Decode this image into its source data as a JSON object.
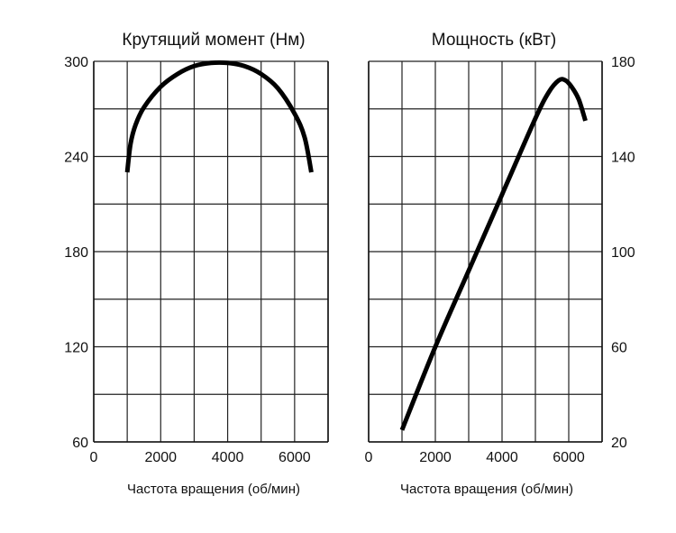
{
  "chart_data": [
    {
      "type": "line",
      "title": "Крутящий момент (Нм)",
      "xlabel": "Частота вращения (об/мин)",
      "ylabel": "",
      "xlim": [
        0,
        7000
      ],
      "ylim": [
        60,
        300
      ],
      "x_ticks": [
        "0",
        "2000",
        "4000",
        "6000"
      ],
      "y_ticks": [
        "60",
        "120",
        "180",
        "240",
        "300"
      ],
      "grid": true,
      "series": [
        {
          "x": [
            1000,
            1100,
            1250,
            1500,
            2000,
            2500,
            3000,
            3500,
            4000,
            4500,
            5000,
            5500,
            6000,
            6300,
            6500
          ],
          "y": [
            230,
            248,
            260,
            271,
            284,
            292,
            297,
            299,
            299,
            297,
            292,
            283,
            267,
            252,
            230
          ]
        }
      ]
    },
    {
      "type": "line",
      "title": "Мощность  (кВт)",
      "xlabel": "Частота вращения (об/мин)",
      "ylabel": "",
      "xlim": [
        0,
        7000
      ],
      "ylim": [
        20,
        180
      ],
      "x_ticks": [
        "0",
        "2000",
        "4000",
        "6000"
      ],
      "y_ticks": [
        "20",
        "60",
        "100",
        "140",
        "180"
      ],
      "grid": true,
      "series": [
        {
          "x": [
            1000,
            2000,
            3000,
            4000,
            5000,
            5400,
            5700,
            5900,
            6100,
            6300,
            6500
          ],
          "y": [
            25,
            60,
            92,
            124,
            156,
            167,
            172,
            172,
            169,
            164,
            155
          ]
        }
      ]
    }
  ]
}
